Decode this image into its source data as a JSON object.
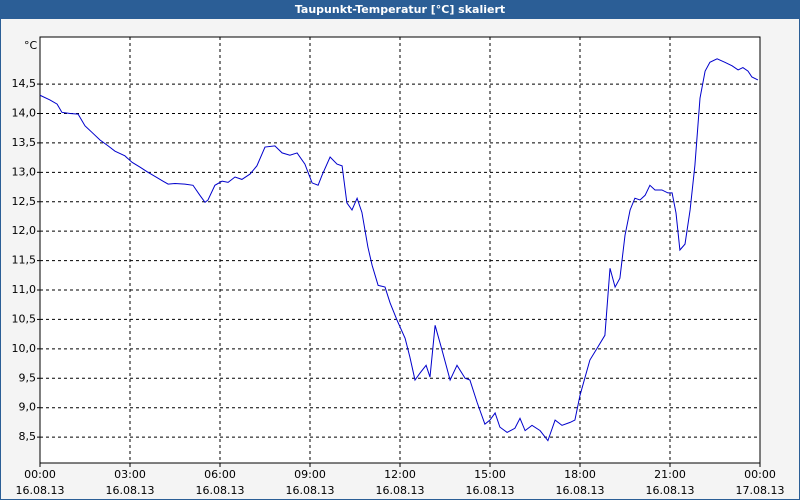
{
  "chart_data": {
    "type": "line",
    "title": "Taupunkt-Temperatur [°C] skaliert",
    "y_label": "°C",
    "x": [
      0,
      0.33,
      0.57,
      0.73,
      1.0,
      1.27,
      1.5,
      1.73,
      2.0,
      2.27,
      2.5,
      2.83,
      3.07,
      3.33,
      3.6,
      3.87,
      4.1,
      4.27,
      4.5,
      4.83,
      5.1,
      5.33,
      5.5,
      5.6,
      5.83,
      6.07,
      6.27,
      6.5,
      6.73,
      7.0,
      7.23,
      7.5,
      7.83,
      8.07,
      8.33,
      8.57,
      8.83,
      9.07,
      9.27,
      9.4,
      9.67,
      9.9,
      10.07,
      10.23,
      10.4,
      10.57,
      10.73,
      10.93,
      11.07,
      11.27,
      11.5,
      11.67,
      11.9,
      12.17,
      12.33,
      12.5,
      12.67,
      12.87,
      13.0,
      13.17,
      13.4,
      13.67,
      13.9,
      14.17,
      14.33,
      14.57,
      14.83,
      15.0,
      15.17,
      15.33,
      15.57,
      15.83,
      16.0,
      16.17,
      16.4,
      16.67,
      16.93,
      17.17,
      17.4,
      17.67,
      17.83,
      18.0,
      18.33,
      18.57,
      18.83,
      19.0,
      19.17,
      19.33,
      19.5,
      19.67,
      19.83,
      20.0,
      20.17,
      20.33,
      20.5,
      20.73,
      20.93,
      21.07,
      21.2,
      21.33,
      21.5,
      21.67,
      21.83,
      22.0,
      22.17,
      22.33,
      22.57,
      22.83,
      23.07,
      23.27,
      23.43,
      23.6,
      23.73,
      23.93
    ],
    "series": [
      {
        "name": "Taupunkt-Temperatur",
        "color": "#0000cc",
        "values": [
          14.31,
          14.23,
          14.16,
          14.02,
          14.0,
          13.99,
          13.79,
          13.68,
          13.55,
          13.45,
          13.36,
          13.28,
          13.17,
          13.09,
          13.0,
          12.92,
          12.85,
          12.8,
          12.81,
          12.8,
          12.78,
          12.61,
          12.49,
          12.53,
          12.78,
          12.85,
          12.83,
          12.92,
          12.88,
          12.97,
          13.11,
          13.43,
          13.45,
          13.33,
          13.29,
          13.33,
          13.14,
          12.82,
          12.78,
          12.95,
          13.26,
          13.14,
          13.11,
          12.48,
          12.36,
          12.56,
          12.32,
          11.73,
          11.42,
          11.08,
          11.05,
          10.78,
          10.49,
          10.18,
          9.86,
          9.47,
          9.59,
          9.72,
          9.52,
          10.4,
          9.98,
          9.47,
          9.72,
          9.5,
          9.47,
          9.09,
          8.72,
          8.79,
          8.91,
          8.67,
          8.58,
          8.65,
          8.82,
          8.61,
          8.7,
          8.61,
          8.44,
          8.79,
          8.7,
          8.75,
          8.79,
          9.21,
          9.81,
          10.01,
          10.23,
          11.37,
          11.05,
          11.2,
          11.93,
          12.36,
          12.56,
          12.53,
          12.61,
          12.78,
          12.7,
          12.7,
          12.65,
          12.65,
          12.31,
          11.68,
          11.78,
          12.36,
          13.12,
          14.26,
          14.72,
          14.87,
          14.93,
          14.87,
          14.81,
          14.74,
          14.78,
          14.72,
          14.62,
          14.57
        ]
      }
    ],
    "xlim": [
      0,
      24
    ],
    "xticks": [
      {
        "value": 0,
        "label": "00:00",
        "date": "16.08.13"
      },
      {
        "value": 3,
        "label": "03:00",
        "date": "16.08.13"
      },
      {
        "value": 6,
        "label": "06:00",
        "date": "16.08.13"
      },
      {
        "value": 9,
        "label": "09:00",
        "date": "16.08.13"
      },
      {
        "value": 12,
        "label": "12:00",
        "date": "16.08.13"
      },
      {
        "value": 15,
        "label": "15:00",
        "date": "16.08.13"
      },
      {
        "value": 18,
        "label": "18:00",
        "date": "16.08.13"
      },
      {
        "value": 21,
        "label": "21:00",
        "date": "16.08.13"
      },
      {
        "value": 24,
        "label": "00:00",
        "date": "17.08.13"
      }
    ],
    "ylim": [
      8.06,
      15.3
    ],
    "yticks": [
      {
        "value": 8.5,
        "label": "8,5"
      },
      {
        "value": 9,
        "label": "9,0"
      },
      {
        "value": 9.5,
        "label": "9,5"
      },
      {
        "value": 10,
        "label": "10,0"
      },
      {
        "value": 10.5,
        "label": "10,5"
      },
      {
        "value": 11,
        "label": "11,0"
      },
      {
        "value": 11.5,
        "label": "11,5"
      },
      {
        "value": 12,
        "label": "12,0"
      },
      {
        "value": 12.5,
        "label": "12,5"
      },
      {
        "value": 13,
        "label": "13,0"
      },
      {
        "value": 13.5,
        "label": "13,5"
      },
      {
        "value": 14,
        "label": "14,0"
      },
      {
        "value": 14.5,
        "label": "14,5"
      }
    ],
    "grid": true
  }
}
